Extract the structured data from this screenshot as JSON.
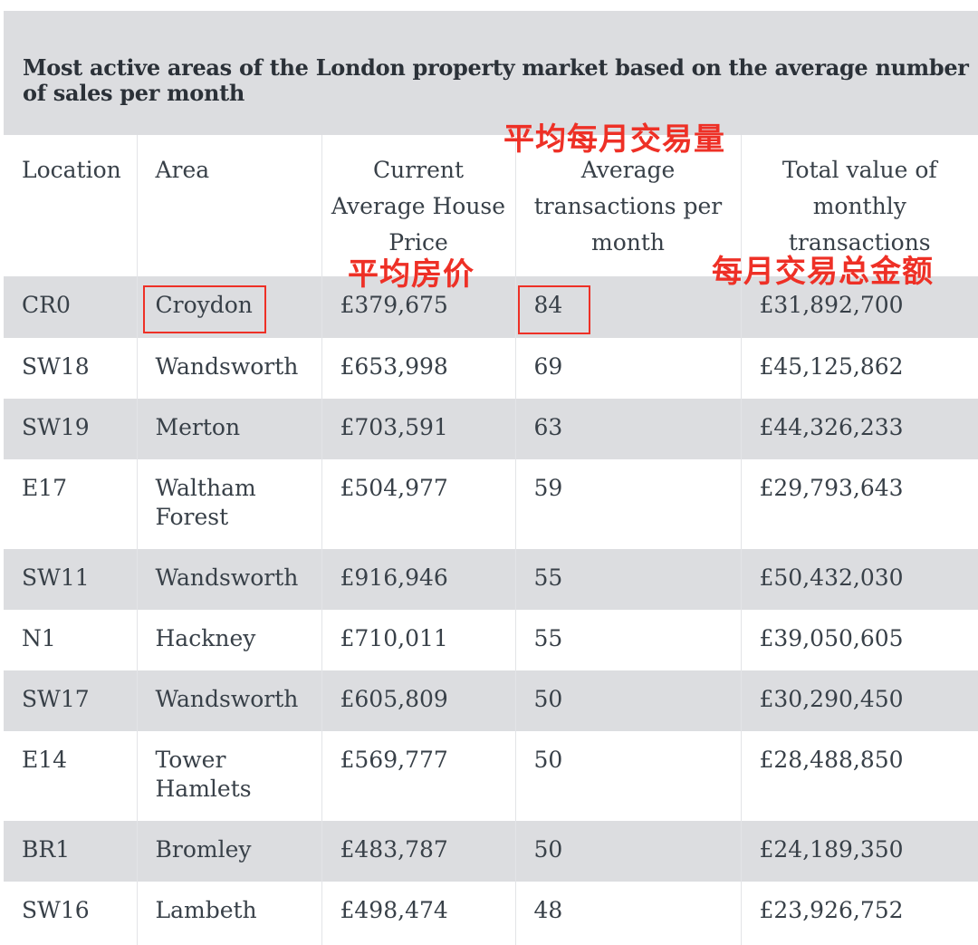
{
  "title": "Most active areas of the London property market based on the average number of sales per month",
  "headers": {
    "location": "Location",
    "area": "Area",
    "price": "Current Average House Price",
    "transactions": "Average transactions per month",
    "total": "Total value of monthly transactions"
  },
  "rows": [
    {
      "location": "CR0",
      "area": "Croydon",
      "price": "£379,675",
      "transactions": "84",
      "total": "£31,892,700"
    },
    {
      "location": "SW18",
      "area": "Wandsworth",
      "price": "£653,998",
      "transactions": "69",
      "total": "£45,125,862"
    },
    {
      "location": "SW19",
      "area": "Merton",
      "price": "£703,591",
      "transactions": "63",
      "total": "£44,326,233"
    },
    {
      "location": "E17",
      "area": "Waltham Forest",
      "price": "£504,977",
      "transactions": "59",
      "total": "£29,793,643"
    },
    {
      "location": "SW11",
      "area": "Wandsworth",
      "price": "£916,946",
      "transactions": "55",
      "total": "£50,432,030"
    },
    {
      "location": "N1",
      "area": "Hackney",
      "price": "£710,011",
      "transactions": "55",
      "total": "£39,050,605"
    },
    {
      "location": "SW17",
      "area": "Wandsworth",
      "price": "£605,809",
      "transactions": "50",
      "total": "£30,290,450"
    },
    {
      "location": "E14",
      "area": "Tower Hamlets",
      "price": "£569,777",
      "transactions": "50",
      "total": "£28,488,850"
    },
    {
      "location": "BR1",
      "area": "Bromley",
      "price": "£483,787",
      "transactions": "50",
      "total": "£24,189,350"
    },
    {
      "location": "SW16",
      "area": "Lambeth",
      "price": "£498,474",
      "transactions": "48",
      "total": "£23,926,752"
    }
  ],
  "annotations": {
    "transactions_cn": "平均每月交易量",
    "price_cn": "平均房价",
    "total_cn": "每月交易总金额",
    "color": "#ee3026"
  }
}
